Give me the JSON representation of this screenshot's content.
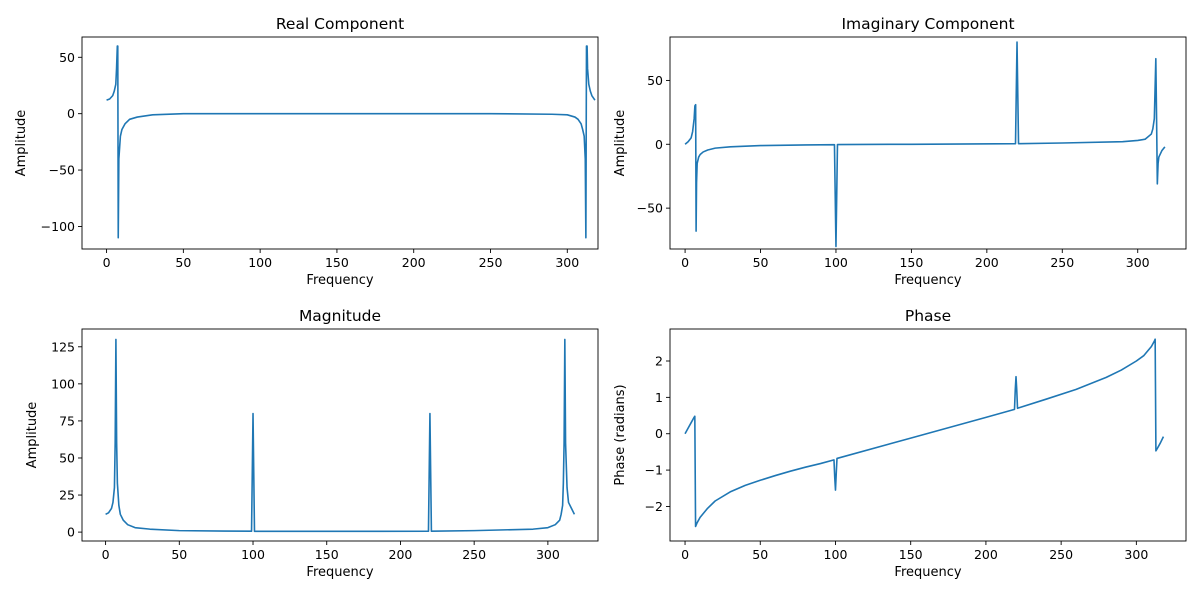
{
  "chart_data": [
    {
      "type": "line",
      "title": "Real Component",
      "xlabel": "Frequency",
      "ylabel": "Amplitude",
      "xlim": [
        -16,
        320
      ],
      "ylim": [
        -120,
        68
      ],
      "xticks": [
        0,
        50,
        100,
        150,
        200,
        250,
        300
      ],
      "yticks": [
        50,
        0,
        -50,
        -100
      ],
      "ytick_labels": [
        "50",
        "0",
        "−50",
        "−100"
      ],
      "grid": false,
      "color": "#1f77b4",
      "series": [
        {
          "x": [
            0,
            2,
            4,
            5,
            6,
            6.5,
            7,
            7.3,
            7.6,
            8,
            9,
            10,
            12,
            15,
            20,
            30,
            50,
            100,
            150,
            200,
            250,
            290,
            300,
            305,
            307,
            309,
            310,
            311,
            311.7,
            312.1,
            312.5,
            312.9,
            313.2,
            314,
            315,
            316,
            318
          ],
          "y": [
            12,
            13,
            16,
            20,
            26,
            40,
            60,
            60,
            -110,
            -40,
            -20,
            -14,
            -9,
            -5,
            -3,
            -1,
            0,
            0,
            0,
            0,
            0,
            -0.5,
            -1,
            -3,
            -5,
            -9,
            -14,
            -20,
            -40,
            -110,
            60,
            60,
            40,
            26,
            20,
            16,
            12
          ]
        }
      ]
    },
    {
      "type": "line",
      "title": "Imaginary Component",
      "xlabel": "Frequency",
      "ylabel": "Amplitude",
      "xlim": [
        -10,
        332
      ],
      "ylim": [
        -82,
        84
      ],
      "xticks": [
        0,
        50,
        100,
        150,
        200,
        250,
        300
      ],
      "yticks": [
        50,
        0,
        -50
      ],
      "ytick_labels": [
        "50",
        "0",
        "−50"
      ],
      "grid": false,
      "color": "#1f77b4",
      "series": [
        {
          "x": [
            0,
            2,
            4,
            5,
            6,
            6.5,
            7,
            7.3,
            7.6,
            8,
            9,
            10,
            12,
            15,
            20,
            30,
            50,
            80,
            99,
            99.5,
            100,
            100.5,
            101,
            150,
            219,
            219.5,
            220,
            220.5,
            221,
            250,
            290,
            300,
            305,
            309,
            310,
            311,
            312,
            312.5,
            313,
            313.5,
            314,
            316,
            318
          ],
          "y": [
            0,
            2,
            5,
            10,
            20,
            30,
            31,
            -68,
            -30,
            -15,
            -10,
            -8,
            -6,
            -4.5,
            -3,
            -2,
            -1,
            -0.5,
            -0.3,
            -40,
            -80,
            -40,
            -0.2,
            0,
            0.5,
            40,
            80,
            40,
            0.5,
            1,
            2,
            3,
            4,
            8,
            12,
            20,
            67,
            20,
            -31,
            -15,
            -10,
            -5,
            -2
          ]
        }
      ]
    },
    {
      "type": "line",
      "title": "Magnitude",
      "xlabel": "Frequency",
      "ylabel": "Amplitude",
      "xlim": [
        -16,
        334
      ],
      "ylim": [
        -6,
        137
      ],
      "xticks": [
        0,
        50,
        100,
        150,
        200,
        250,
        300
      ],
      "yticks": [
        0,
        25,
        50,
        75,
        100,
        125
      ],
      "ytick_labels": [
        "0",
        "25",
        "50",
        "75",
        "100",
        "125"
      ],
      "grid": false,
      "color": "#1f77b4",
      "series": [
        {
          "x": [
            0,
            2,
            4,
            5,
            6,
            6.5,
            7,
            7.5,
            8,
            9,
            10,
            12,
            15,
            20,
            30,
            50,
            80,
            99,
            99.5,
            100,
            100.5,
            101,
            150,
            219,
            219.5,
            220,
            220.5,
            221,
            250,
            290,
            300,
            305,
            308,
            309,
            310,
            310.5,
            311,
            311.5,
            312,
            313,
            314,
            316,
            318
          ],
          "y": [
            12,
            13,
            16,
            20,
            30,
            60,
            130,
            60,
            33,
            18,
            12,
            8,
            5,
            3,
            2,
            1,
            0.7,
            0.6,
            40,
            80,
            40,
            0.5,
            0.5,
            0.6,
            40,
            80,
            40,
            0.6,
            1,
            2,
            3,
            5,
            8,
            12,
            18,
            33,
            60,
            130,
            60,
            30,
            20,
            16,
            12
          ]
        }
      ]
    },
    {
      "type": "line",
      "title": "Phase",
      "xlabel": "Frequency",
      "ylabel": "Phase (radians)",
      "xlim": [
        -10,
        333
      ],
      "ylim": [
        -2.95,
        2.88
      ],
      "xticks": [
        0,
        50,
        100,
        150,
        200,
        250,
        300
      ],
      "yticks": [
        2,
        1,
        0,
        -1,
        -2
      ],
      "ytick_labels": [
        "2",
        "1",
        "0",
        "−1",
        "−2"
      ],
      "grid": false,
      "color": "#1f77b4",
      "series": [
        {
          "x": [
            0,
            2,
            4,
            6,
            6.5,
            7,
            8,
            10,
            15,
            20,
            30,
            40,
            50,
            60,
            70,
            80,
            90,
            99,
            99.5,
            100,
            100.5,
            101,
            150,
            200,
            219,
            219.5,
            220,
            220.5,
            221,
            240,
            260,
            280,
            290,
            300,
            305,
            310,
            312,
            312.5,
            313,
            314,
            316,
            318
          ],
          "y": [
            0,
            0.15,
            0.3,
            0.45,
            0.48,
            -2.55,
            -2.45,
            -2.3,
            -2.05,
            -1.85,
            -1.6,
            -1.42,
            -1.28,
            -1.15,
            -1.03,
            -0.92,
            -0.82,
            -0.72,
            -1.2,
            -1.55,
            -1.1,
            -0.68,
            -0.12,
            0.45,
            0.67,
            1.2,
            1.57,
            1.2,
            0.7,
            0.95,
            1.22,
            1.55,
            1.75,
            2.0,
            2.15,
            2.4,
            2.55,
            2.6,
            -0.47,
            -0.4,
            -0.25,
            -0.08
          ]
        }
      ]
    }
  ]
}
